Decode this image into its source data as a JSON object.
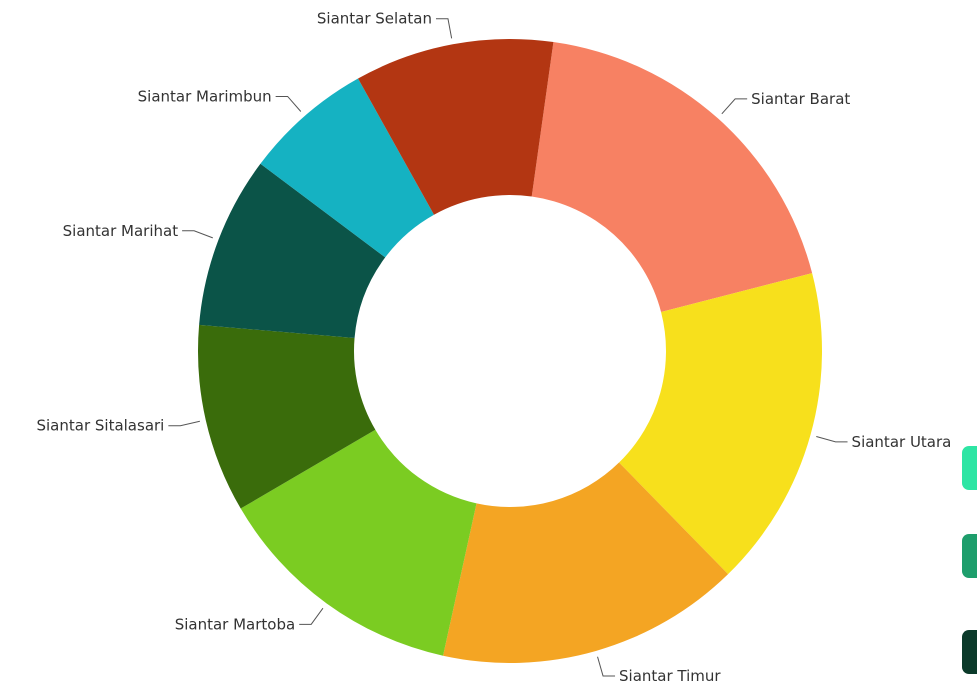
{
  "chart_data": {
    "type": "pie",
    "style": "donut",
    "title": "",
    "categories": [
      "Siantar Barat",
      "Siantar Utara",
      "Siantar Timur",
      "Siantar Martoba",
      "Siantar Sitalasari",
      "Siantar Marihat",
      "Siantar Marimbun",
      "Siantar Selatan"
    ],
    "values": [
      20.0,
      17.8,
      16.8,
      14.0,
      10.4,
      9.5,
      7.1,
      11.0
    ],
    "colors": [
      "#F78163",
      "#F7E01C",
      "#F4A523",
      "#7BCC22",
      "#3A6C0B",
      "#0B5448",
      "#15B2C2",
      "#B33612"
    ],
    "show_data_labels": false,
    "legend": {
      "placement": "right",
      "colors": [
        "#2EE5A4",
        "#1E9E6C",
        "#0B3A2A"
      ]
    }
  }
}
